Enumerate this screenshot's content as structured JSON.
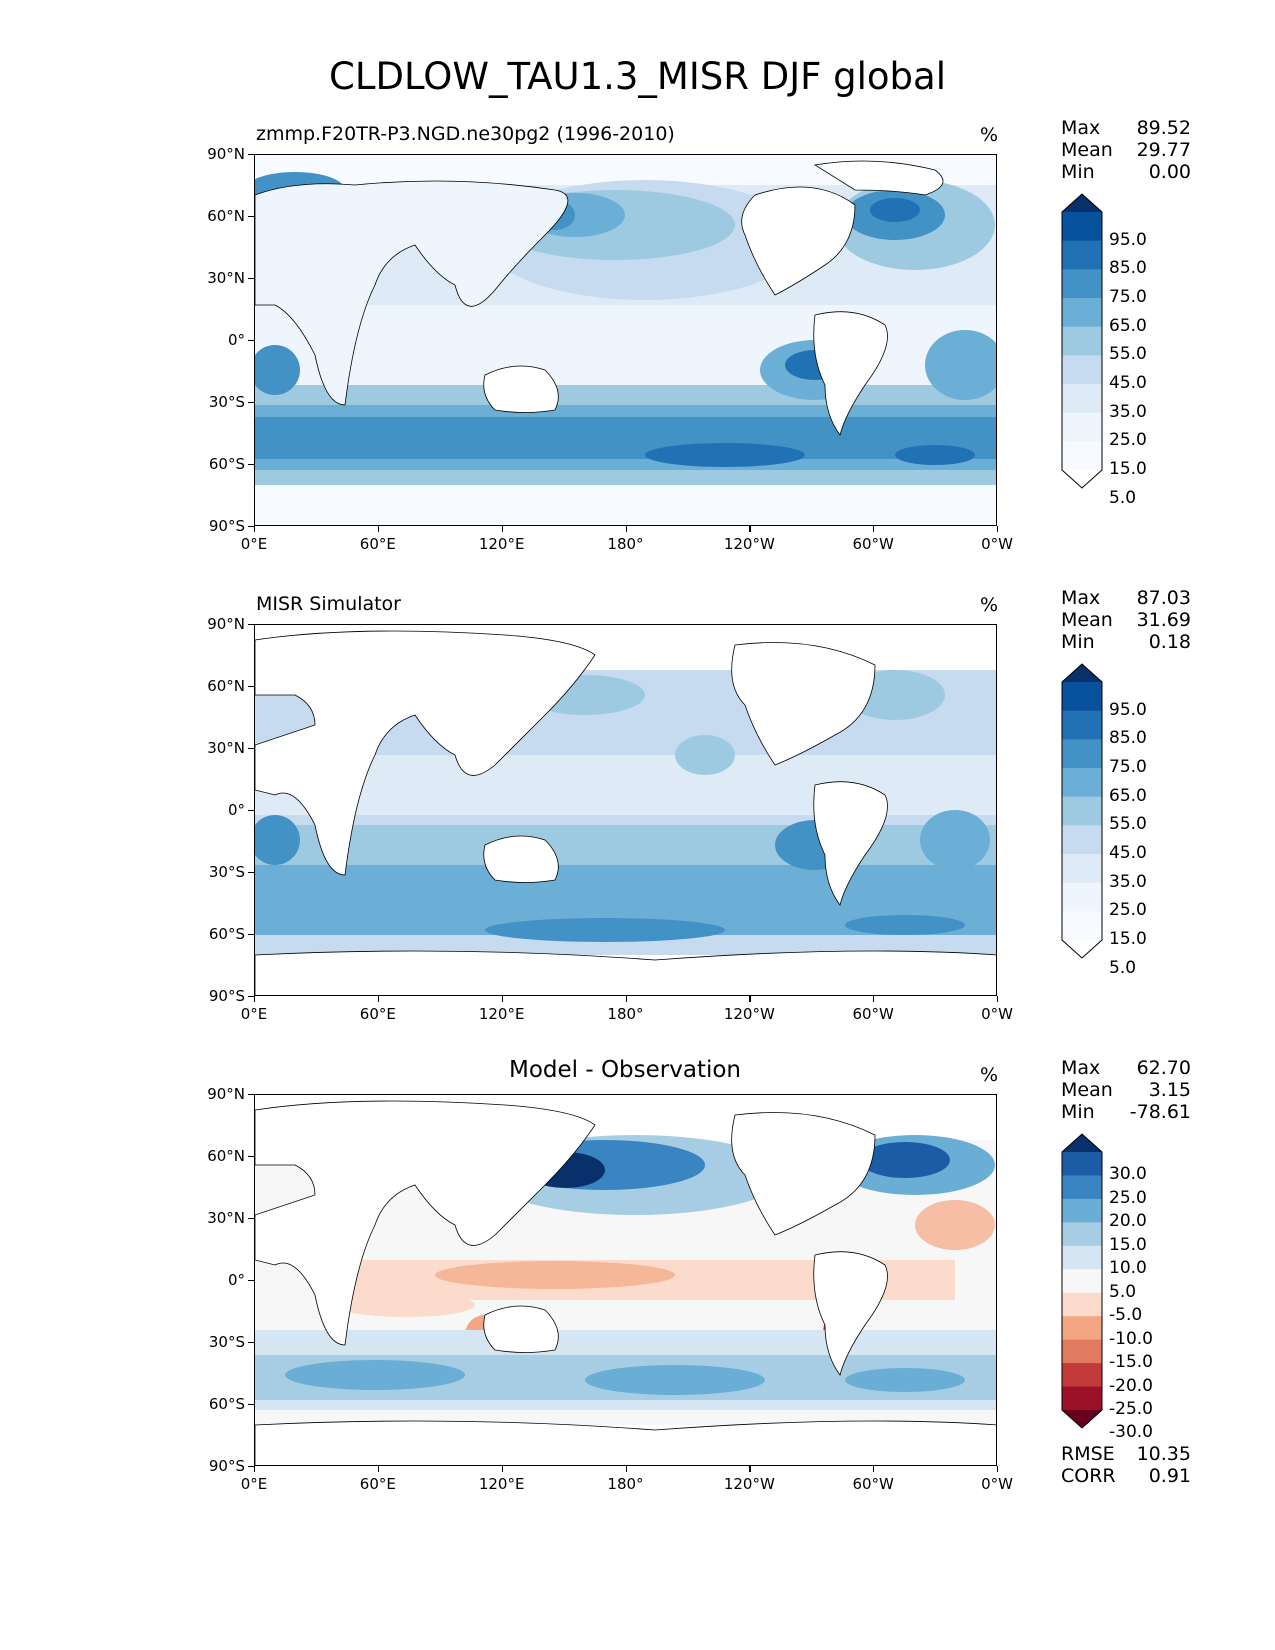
{
  "figure": {
    "title": "CLDLOW_TAU1.3_MISR DJF global",
    "unit": "%"
  },
  "axes": {
    "yticks": [
      "90°N",
      "60°N",
      "30°N",
      "0°",
      "30°S",
      "60°S",
      "90°S"
    ],
    "xticks": [
      "0°E",
      "60°E",
      "120°E",
      "180°",
      "120°W",
      "60°W",
      "0°W"
    ]
  },
  "panels": [
    {
      "label": "zmmp.F20TR-P3.NGD.ne30pg2 (1996-2010)",
      "stats": {
        "max_label": "Max",
        "max": "89.52",
        "mean_label": "Mean",
        "mean": "29.77",
        "min_label": "Min",
        "min": "0.00"
      },
      "colorbar": {
        "levels": [
          "95.0",
          "85.0",
          "75.0",
          "65.0",
          "55.0",
          "45.0",
          "35.0",
          "25.0",
          "15.0",
          "5.0"
        ],
        "colors": [
          "#08306b",
          "#08519c",
          "#2171b5",
          "#4292c6",
          "#6baed6",
          "#9ecae1",
          "#c6dbef",
          "#deebf7",
          "#eef5fc",
          "#f7fbff",
          "#ffffff"
        ]
      }
    },
    {
      "label": "MISR Simulator",
      "stats": {
        "max_label": "Max",
        "max": "87.03",
        "mean_label": "Mean",
        "mean": "31.69",
        "min_label": "Min",
        "min": "0.18"
      },
      "colorbar": {
        "levels": [
          "95.0",
          "85.0",
          "75.0",
          "65.0",
          "55.0",
          "45.0",
          "35.0",
          "25.0",
          "15.0",
          "5.0"
        ],
        "colors": [
          "#08306b",
          "#08519c",
          "#2171b5",
          "#4292c6",
          "#6baed6",
          "#9ecae1",
          "#c6dbef",
          "#deebf7",
          "#eef5fc",
          "#f7fbff",
          "#ffffff"
        ]
      }
    },
    {
      "label": "Model - Observation",
      "stats": {
        "max_label": "Max",
        "max": "62.70",
        "mean_label": "Mean",
        "mean": "3.15",
        "min_label": "Min",
        "min": "-78.61"
      },
      "colorbar": {
        "levels": [
          "30.0",
          "25.0",
          "20.0",
          "15.0",
          "10.0",
          "5.0",
          "-5.0",
          "-10.0",
          "-15.0",
          "-20.0",
          "-25.0",
          "-30.0"
        ],
        "colors": [
          "#08306b",
          "#1c5ba6",
          "#3a85c1",
          "#6aaed6",
          "#a6cde4",
          "#d5e6f2",
          "#f7f7f7",
          "#fbdccc",
          "#f4a582",
          "#e07a60",
          "#c33a3b",
          "#9c1127",
          "#67001f"
        ]
      },
      "metrics": {
        "rmse_label": "RMSE",
        "rmse": "10.35",
        "corr_label": "CORR",
        "corr": "0.91"
      }
    }
  ]
}
